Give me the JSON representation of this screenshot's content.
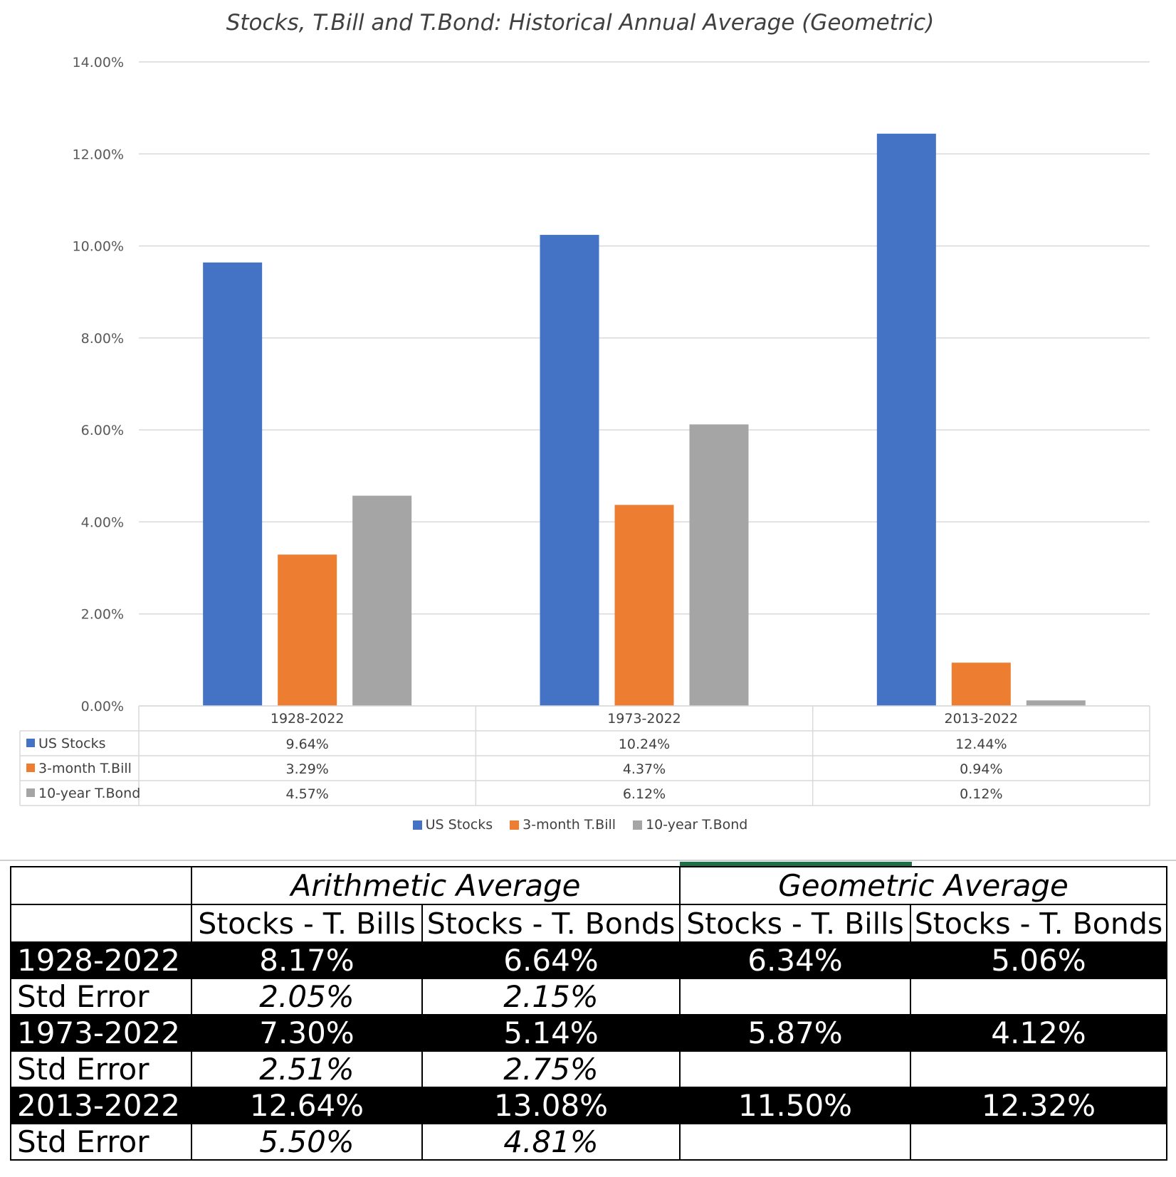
{
  "chart_data": {
    "type": "bar",
    "title": "Stocks, T.Bill and T.Bond: Historical Annual Average (Geometric)",
    "categories": [
      "1928-2022",
      "1973-2022",
      "2013-2022"
    ],
    "series": [
      {
        "name": "US Stocks",
        "values": [
          9.64,
          10.24,
          12.44
        ],
        "labels": [
          "9.64%",
          "10.24%",
          "12.44%"
        ],
        "color": "#4472c4"
      },
      {
        "name": "3-month T.Bill",
        "values": [
          3.29,
          4.37,
          0.94
        ],
        "labels": [
          "3.29%",
          "4.37%",
          "0.94%"
        ],
        "color": "#ed7d31"
      },
      {
        "name": "10-year T.Bond",
        "values": [
          4.57,
          6.12,
          0.12
        ],
        "labels": [
          "4.57%",
          "6.12%",
          "0.12%"
        ],
        "color": "#a5a5a5"
      }
    ],
    "ylim": [
      0,
      14
    ],
    "yticks": [
      "0.00%",
      "2.00%",
      "4.00%",
      "6.00%",
      "8.00%",
      "10.00%",
      "12.00%",
      "14.00%"
    ],
    "grid": true,
    "legend": "bottom",
    "data_table": true
  },
  "table": {
    "groups": [
      "Arithmetic Average",
      "Geometric Average"
    ],
    "subheaders": [
      "Stocks - T. Bills",
      "Stocks - T. Bonds",
      "Stocks - T. Bills",
      "Stocks - T. Bonds"
    ],
    "rows": [
      {
        "label": "1928-2022",
        "cells": [
          "8.17%",
          "6.64%",
          "6.34%",
          "5.06%"
        ],
        "kind": "period"
      },
      {
        "label": "Std Error",
        "cells": [
          "2.05%",
          "2.15%",
          "",
          ""
        ],
        "kind": "error"
      },
      {
        "label": "1973-2022",
        "cells": [
          "7.30%",
          "5.14%",
          "5.87%",
          "4.12%"
        ],
        "kind": "period"
      },
      {
        "label": "Std Error",
        "cells": [
          "2.51%",
          "2.75%",
          "",
          ""
        ],
        "kind": "error"
      },
      {
        "label": "2013-2022",
        "cells": [
          "12.64%",
          "13.08%",
          "11.50%",
          "12.32%"
        ],
        "kind": "period"
      },
      {
        "label": "Std Error",
        "cells": [
          "5.50%",
          "4.81%",
          "",
          ""
        ],
        "kind": "error"
      }
    ]
  }
}
